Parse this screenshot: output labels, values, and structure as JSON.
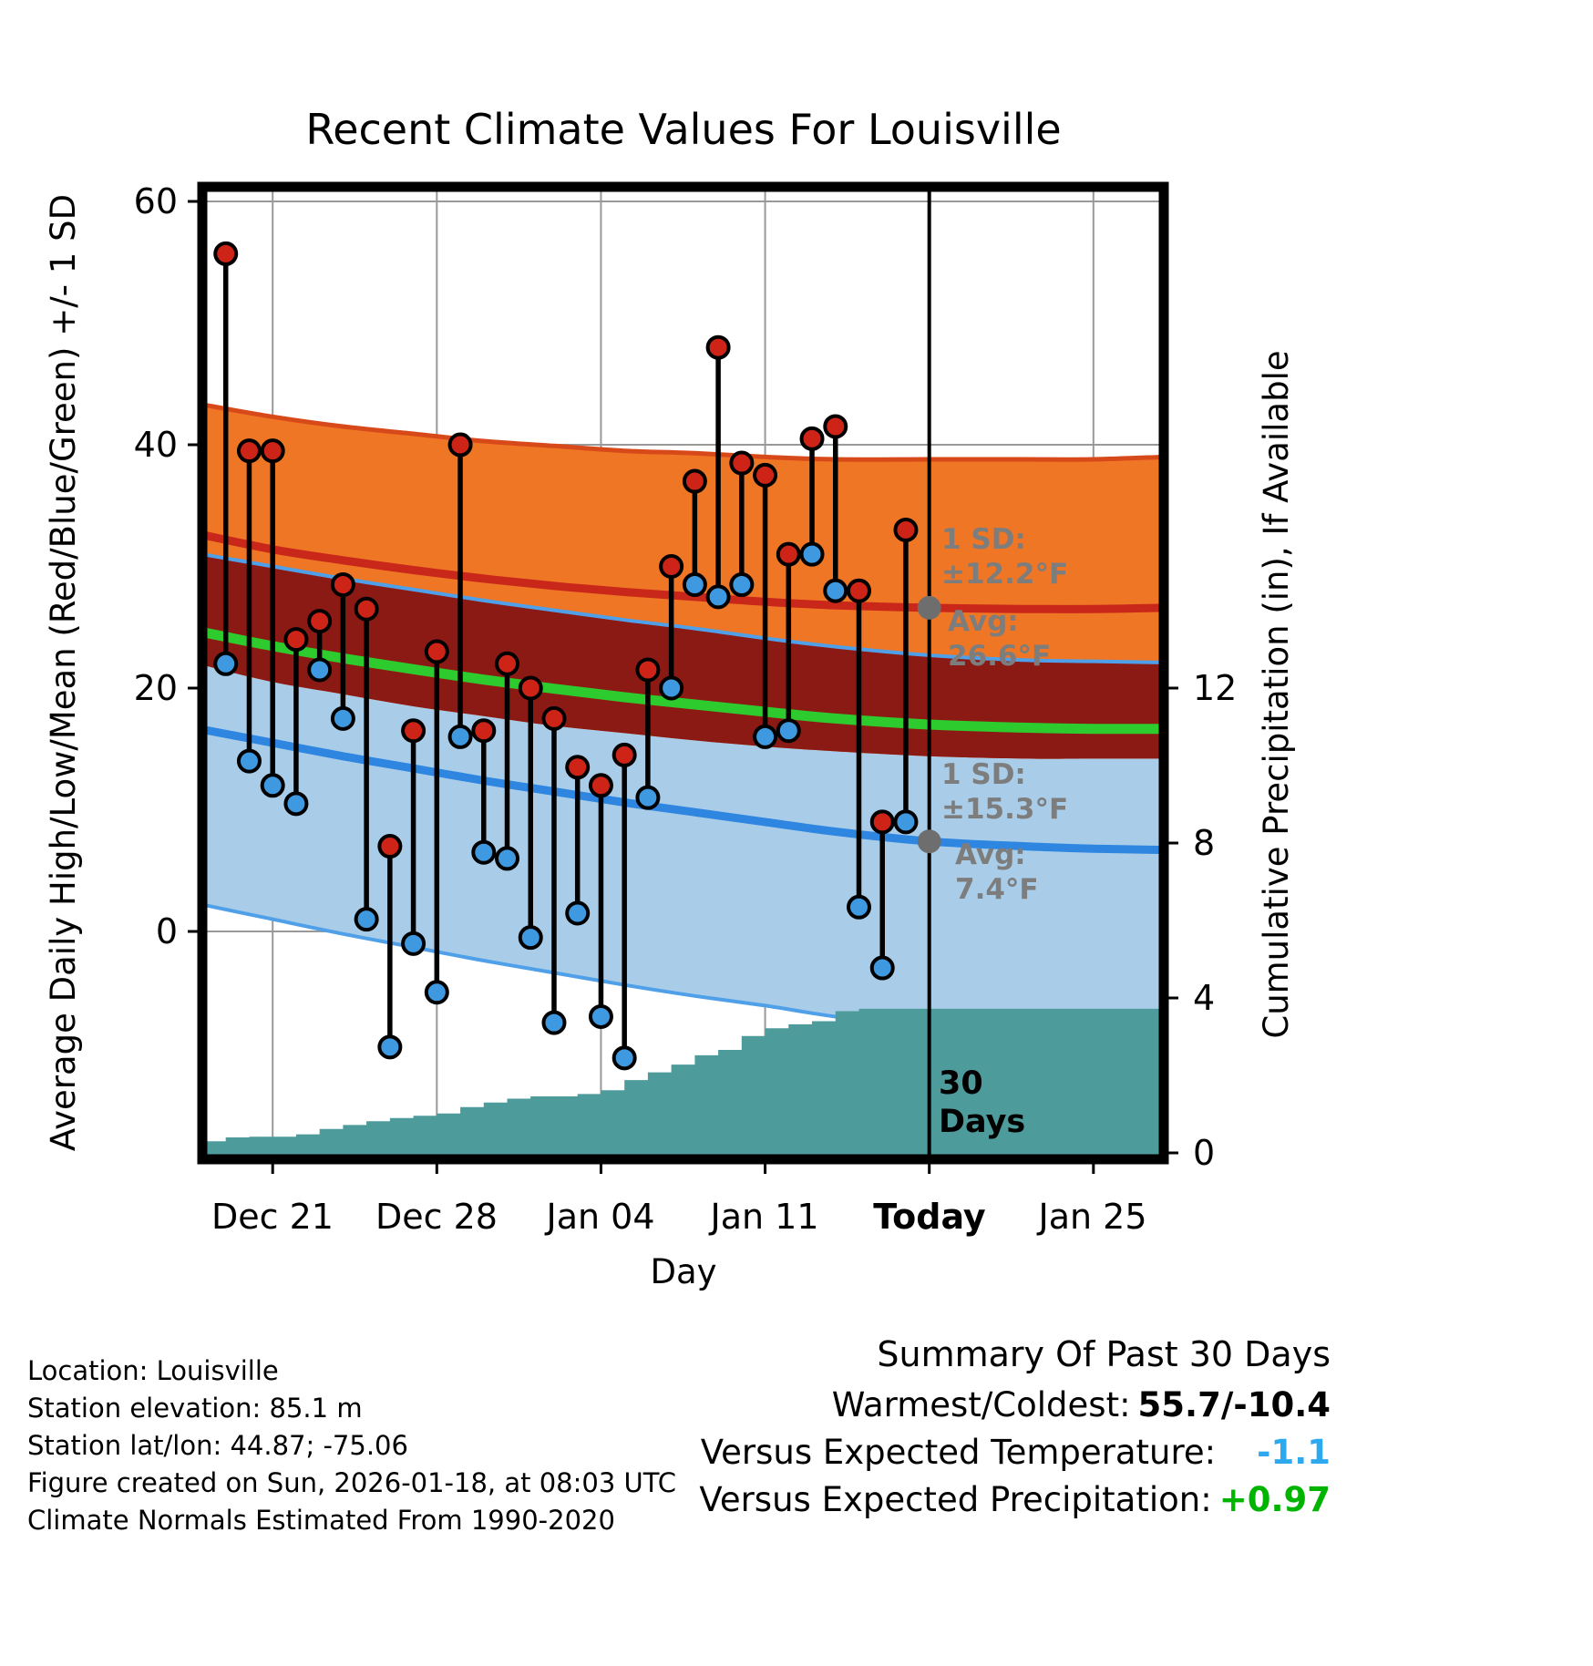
{
  "title": "Recent Climate Values For Louisville",
  "axes": {
    "x_label": "Day",
    "left_label": "Average Daily High/Low/Mean (Red/Blue/Green) +/- 1 SD",
    "right_label": "Cumulative Precipitation (in), If Available",
    "left_tick_labels": [
      "60",
      "40",
      "20",
      "0"
    ],
    "left_tick_values": [
      60,
      40,
      20,
      0
    ],
    "right_tick_labels": [
      "12",
      "8",
      "4",
      "0"
    ],
    "right_tick_values": [
      12,
      8,
      4,
      0
    ],
    "x_tick_labels": [
      "Dec 21",
      "Dec 28",
      "Jan 04",
      "Jan 11",
      "Today",
      "Jan 25"
    ],
    "x_tick_days": [
      3,
      10,
      17,
      24,
      31,
      38
    ]
  },
  "chart_data": {
    "type": "line",
    "x_axis_start_date": "Dec 18",
    "today_day": 31,
    "temp_axis_range": [
      -18.7,
      61.2
    ],
    "precip_axis_range": [
      0,
      25
    ],
    "dates": [
      "Dec 19",
      "Dec 20",
      "Dec 21",
      "Dec 22",
      "Dec 23",
      "Dec 24",
      "Dec 25",
      "Dec 26",
      "Dec 27",
      "Dec 28",
      "Dec 29",
      "Dec 30",
      "Dec 31",
      "Jan 01",
      "Jan 02",
      "Jan 03",
      "Jan 04",
      "Jan 05",
      "Jan 06",
      "Jan 07",
      "Jan 08",
      "Jan 09",
      "Jan 10",
      "Jan 11",
      "Jan 12",
      "Jan 13",
      "Jan 14",
      "Jan 15",
      "Jan 16",
      "Jan 17"
    ],
    "days": [
      1,
      2,
      3,
      4,
      5,
      6,
      7,
      8,
      9,
      10,
      11,
      12,
      13,
      14,
      15,
      16,
      17,
      18,
      19,
      20,
      21,
      22,
      23,
      24,
      25,
      26,
      27,
      28,
      29,
      30
    ],
    "daily_high": [
      55.7,
      39.5,
      39.5,
      24,
      25.5,
      28.5,
      26.5,
      7,
      16.5,
      23,
      40,
      16.5,
      22,
      20,
      17.5,
      13.5,
      12,
      14.5,
      21.5,
      30,
      37,
      48,
      38.5,
      37.5,
      31,
      40.5,
      41.5,
      28,
      9,
      33
    ],
    "daily_low": [
      22,
      14,
      12,
      10.5,
      21.5,
      17.5,
      1,
      -9.5,
      -1,
      -5,
      16,
      6.5,
      6,
      -0.5,
      -7.5,
      1.5,
      -7,
      -10.4,
      11,
      20,
      28.5,
      27.5,
      28.5,
      16,
      16.5,
      31,
      28,
      2,
      -3,
      9
    ],
    "climatology": {
      "days": [
        0,
        3,
        6,
        9,
        12,
        15,
        18,
        21,
        24,
        27,
        31,
        35,
        38,
        41
      ],
      "avg_high": [
        32.6,
        31.4,
        30.5,
        29.7,
        29.0,
        28.4,
        27.9,
        27.5,
        27.1,
        26.8,
        26.6,
        26.5,
        26.5,
        26.6
      ],
      "sd_high": [
        10.7,
        10.9,
        11.0,
        11.2,
        11.3,
        11.5,
        11.6,
        11.8,
        11.9,
        12.0,
        12.2,
        12.3,
        12.3,
        12.4
      ],
      "avg_low": [
        16.6,
        15.5,
        14.4,
        13.4,
        12.4,
        11.5,
        10.6,
        9.8,
        9.0,
        8.2,
        7.4,
        7.0,
        6.8,
        6.7
      ],
      "sd_low": [
        14.4,
        14.5,
        14.6,
        14.7,
        14.8,
        14.9,
        15.0,
        15.1,
        15.1,
        15.2,
        15.3,
        15.3,
        15.4,
        15.4
      ]
    },
    "today_avg_high": 26.6,
    "today_sd_high": 12.2,
    "today_avg_low": 7.4,
    "today_sd_low": 15.3,
    "cumulative_precip_in": {
      "days": [
        0,
        1,
        2,
        4,
        5,
        6,
        7,
        8,
        9,
        10,
        11,
        12,
        13,
        14,
        16,
        17,
        18,
        19,
        20,
        21,
        22,
        23,
        24,
        25,
        26,
        27,
        28,
        41
      ],
      "values": [
        0.3,
        0.4,
        0.42,
        0.48,
        0.62,
        0.72,
        0.82,
        0.9,
        0.96,
        1.02,
        1.18,
        1.3,
        1.4,
        1.46,
        1.52,
        1.62,
        1.88,
        2.08,
        2.28,
        2.52,
        2.66,
        3.02,
        3.22,
        3.32,
        3.4,
        3.66,
        3.72,
        3.72
      ]
    }
  },
  "annotations": {
    "high_sd_line1": "1 SD:",
    "high_sd_line2": "±12.2°F",
    "high_avg_line1": "Avg:",
    "high_avg_line2": "26.6°F",
    "low_sd_line1": "1 SD:",
    "low_sd_line2": "±15.3°F",
    "low_avg_line1": "Avg:",
    "low_avg_line2": "7.4°F",
    "period_line1": "30",
    "period_line2": "Days"
  },
  "footer": {
    "lines": [
      "Location: Louisville",
      "Station elevation: 85.1 m",
      "Station lat/lon: 44.87; -75.06",
      "Figure created on Sun, 2026-01-18, at 08:03 UTC",
      "Climate Normals Estimated From 1990-2020"
    ]
  },
  "summary": {
    "title": "Summary Of Past 30 Days",
    "rows": [
      {
        "label": "Warmest/Coldest:",
        "value": "55.7/-10.4",
        "color": "#000000"
      },
      {
        "label": "Versus Expected Temperature:",
        "value": "-1.1",
        "color": "#2DA9F0"
      },
      {
        "label": "Versus Expected Precipitation:",
        "value": "+0.97",
        "color": "#00B400"
      }
    ]
  },
  "colors": {
    "high_band": "#EE7625",
    "overlap_band": "#8C1A14",
    "low_band": "#A9CDE8",
    "high_line": "#C9271A",
    "low_line": "#2E86E0",
    "mean_line": "#2DCB2D",
    "band_edge_high": "#D8491A",
    "band_edge_low": "#4FA0E8",
    "precip_fill": "#4E9B9B",
    "dot_high": "#CE2418",
    "dot_low": "#3F99E0",
    "today_marker": "#6E6E6E",
    "gridline": "#999999",
    "annotation_text": "#7D7D7D"
  }
}
